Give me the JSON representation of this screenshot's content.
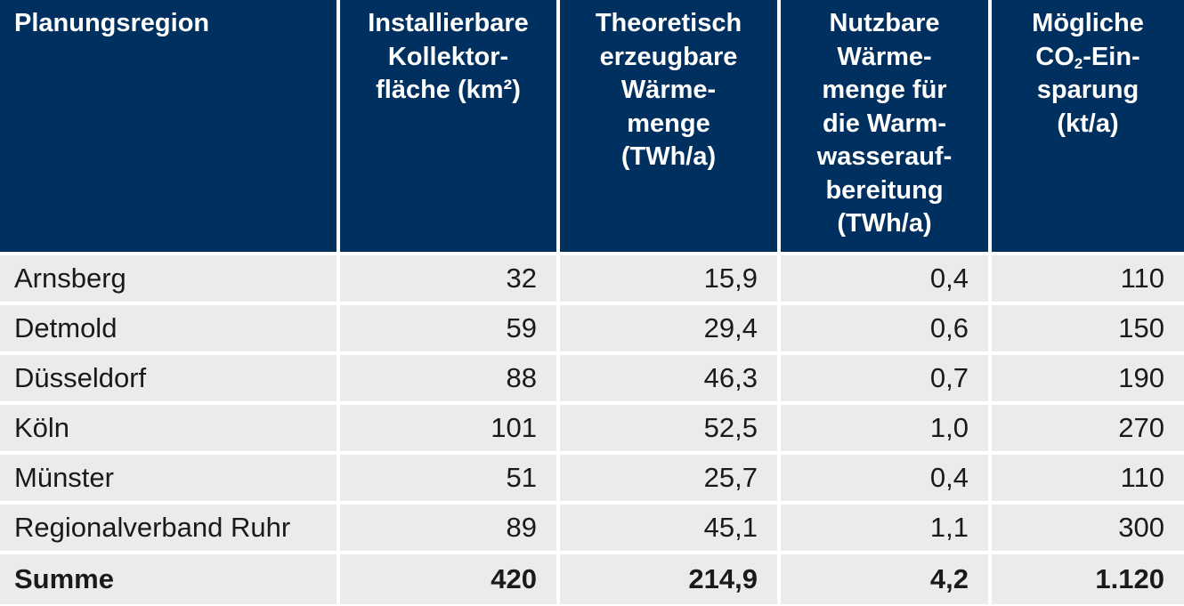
{
  "header": {
    "col0": [
      "Planungsregion"
    ],
    "col1": [
      "Installierbare",
      "Kollektor-",
      "fläche (km²)"
    ],
    "col2": [
      "Theoretisch",
      "erzeugbare",
      "Wärme-",
      "menge",
      "(TWh/a)"
    ],
    "col3": [
      "Nutzbare",
      "Wärme-",
      "menge für",
      "die Warm-",
      "wasserauf-",
      "bereitung",
      "(TWh/a)"
    ],
    "col4": {
      "line1": "Mögliche",
      "line2_pre": "CO",
      "line2_sub": "2",
      "line2_post": "-Ein-",
      "line3": "sparung",
      "line4": "(kt/a)"
    }
  },
  "rows": [
    {
      "region": "Arnsberg",
      "flaeche": "32",
      "waerme": "15,9",
      "nutzbar": "0,4",
      "co2": "110"
    },
    {
      "region": "Detmold",
      "flaeche": "59",
      "waerme": "29,4",
      "nutzbar": "0,6",
      "co2": "150"
    },
    {
      "region": "Düsseldorf",
      "flaeche": "88",
      "waerme": "46,3",
      "nutzbar": "0,7",
      "co2": "190"
    },
    {
      "region": "Köln",
      "flaeche": "101",
      "waerme": "52,5",
      "nutzbar": "1,0",
      "co2": "270"
    },
    {
      "region": "Münster",
      "flaeche": "51",
      "waerme": "25,7",
      "nutzbar": "0,4",
      "co2": "110"
    },
    {
      "region": "Regionalverband Ruhr",
      "flaeche": "89",
      "waerme": "45,1",
      "nutzbar": "1,1",
      "co2": "300"
    }
  ],
  "sum": {
    "label": "Summe",
    "flaeche": "420",
    "waerme": "214,9",
    "nutzbar": "4,2",
    "co2": "1.120"
  },
  "colors": {
    "header_bg": "#00305f",
    "row_bg": "#ebebeb",
    "header_text": "#ffffff"
  }
}
